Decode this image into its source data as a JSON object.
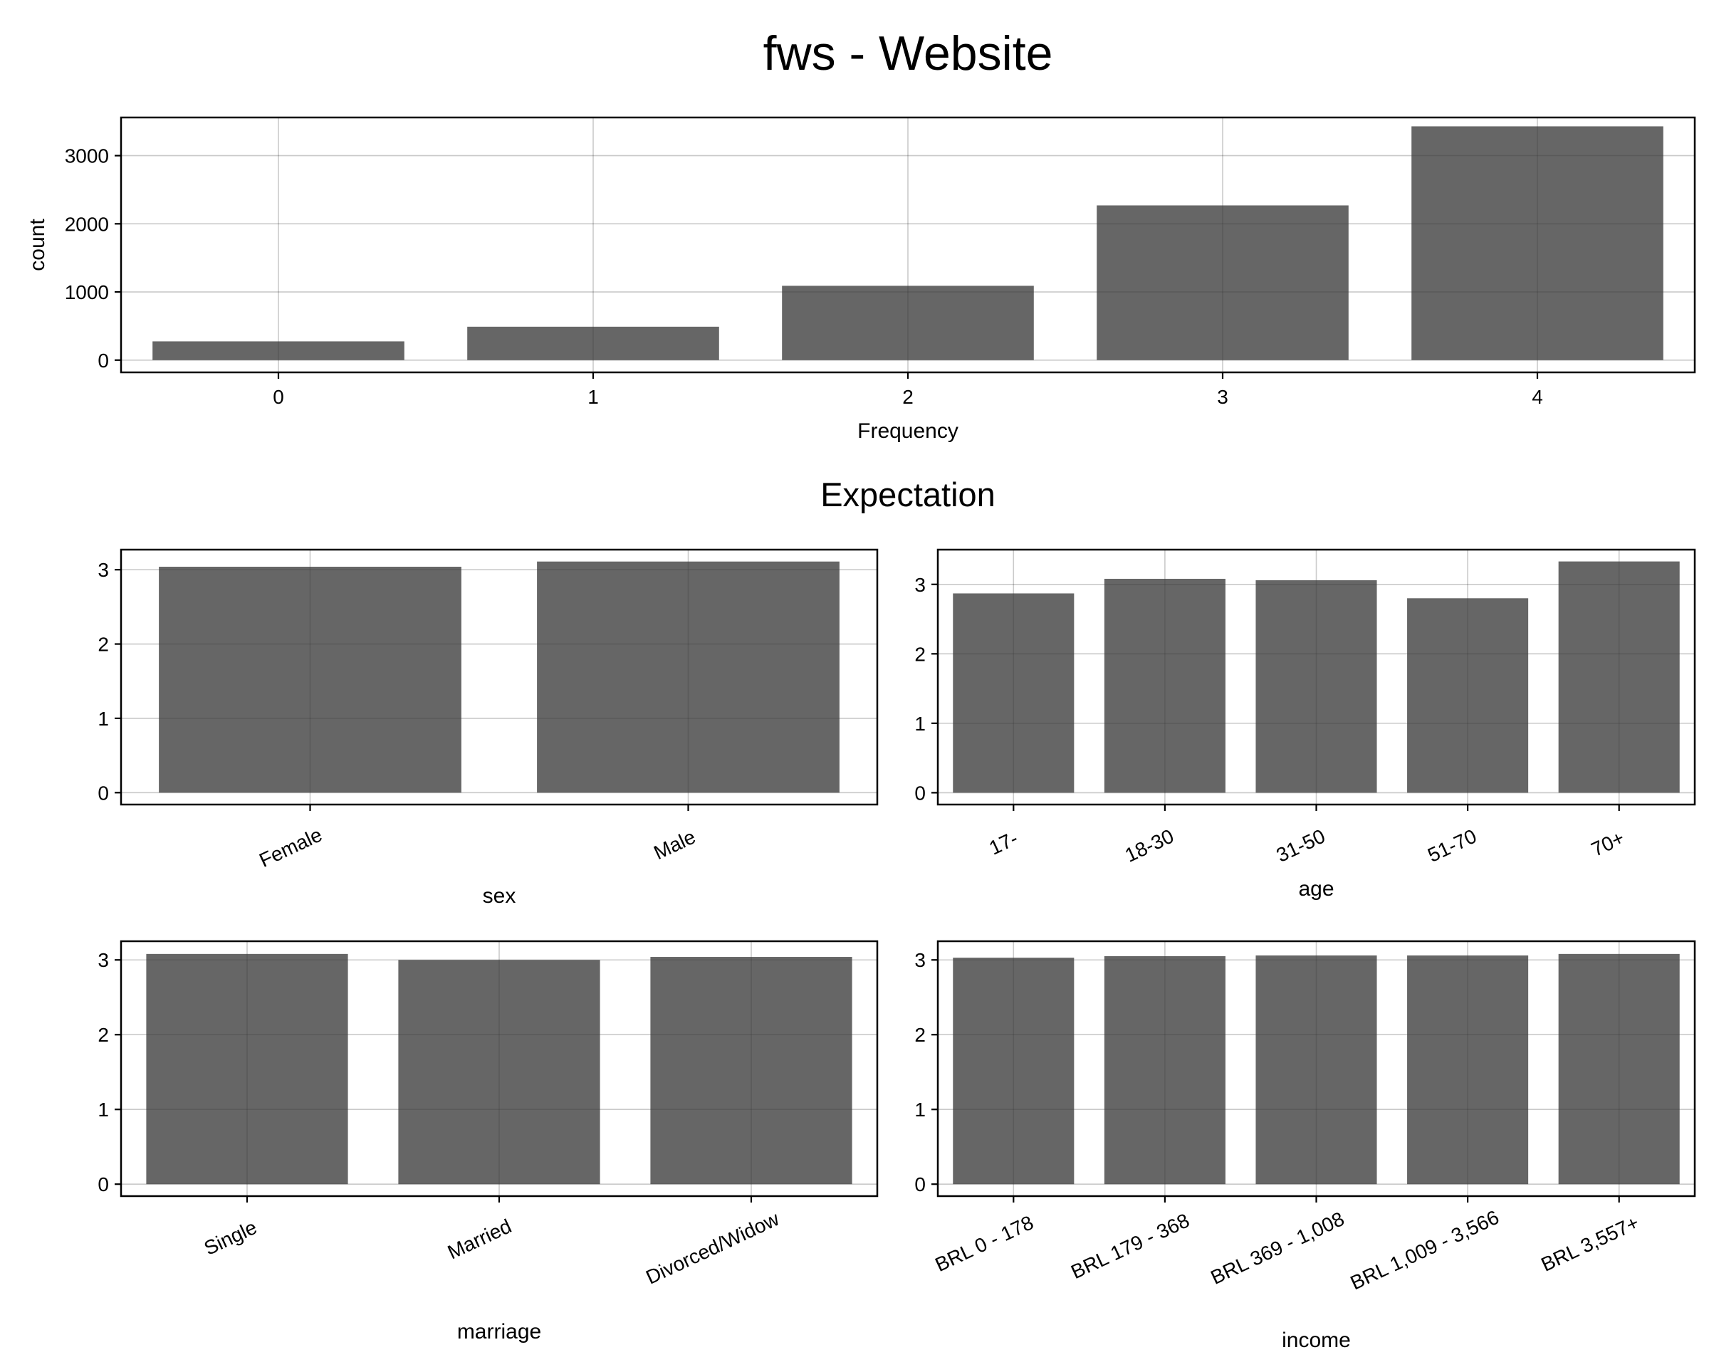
{
  "figure": {
    "title": "fws - Website",
    "subtitle": "Expectation"
  },
  "chart_data": [
    {
      "id": "frequency",
      "type": "bar",
      "title": "",
      "xlabel": "Frequency",
      "ylabel": "count",
      "categories": [
        "0",
        "1",
        "2",
        "3",
        "4"
      ],
      "values": [
        275,
        490,
        1090,
        2270,
        3430
      ],
      "ylim": [
        -180,
        3560
      ],
      "yticks": [
        0,
        1000,
        2000,
        3000
      ],
      "xtick_rotation": 0,
      "grid": true,
      "bar_color": "#666666"
    },
    {
      "id": "sex",
      "type": "bar",
      "title": "",
      "xlabel": "sex",
      "ylabel": "",
      "categories": [
        "Female",
        "Male"
      ],
      "values": [
        3.04,
        3.11
      ],
      "ylim": [
        -0.16,
        3.27
      ],
      "yticks": [
        0,
        1,
        2,
        3
      ],
      "xtick_rotation": -25,
      "grid": true,
      "bar_color": "#666666"
    },
    {
      "id": "age",
      "type": "bar",
      "title": "",
      "xlabel": "age",
      "ylabel": "",
      "categories": [
        "17-",
        "18-30",
        "31-50",
        "51-70",
        "70+"
      ],
      "values": [
        2.87,
        3.08,
        3.06,
        2.8,
        3.33
      ],
      "ylim": [
        -0.17,
        3.5
      ],
      "yticks": [
        0,
        1,
        2,
        3
      ],
      "xtick_rotation": -25,
      "grid": true,
      "bar_color": "#666666"
    },
    {
      "id": "marriage",
      "type": "bar",
      "title": "",
      "xlabel": "marriage",
      "ylabel": "",
      "categories": [
        "Single",
        "Married",
        "Divorced/Widow"
      ],
      "values": [
        3.08,
        3.0,
        3.04
      ],
      "ylim": [
        -0.16,
        3.25
      ],
      "yticks": [
        0,
        1,
        2,
        3
      ],
      "xtick_rotation": -25,
      "grid": true,
      "bar_color": "#666666"
    },
    {
      "id": "income",
      "type": "bar",
      "title": "",
      "xlabel": "income",
      "ylabel": "",
      "categories": [
        "BRL 0 - 178",
        "BRL 179 - 368",
        "BRL 369 - 1,008",
        "BRL 1,009 - 3,566",
        "BRL 3,557+"
      ],
      "values": [
        3.03,
        3.05,
        3.06,
        3.06,
        3.08
      ],
      "ylim": [
        -0.16,
        3.25
      ],
      "yticks": [
        0,
        1,
        2,
        3
      ],
      "xtick_rotation": -25,
      "grid": true,
      "bar_color": "#666666"
    }
  ]
}
